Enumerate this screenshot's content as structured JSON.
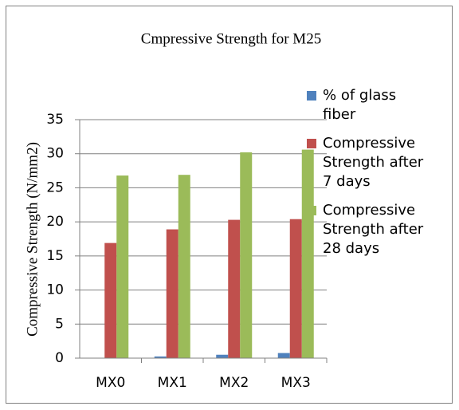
{
  "chart_data": {
    "type": "bar",
    "title": "Cmpressive Strength for M25",
    "y_label": "Compressive Strength (N/mm2)",
    "categories": [
      "MX0",
      "MX1",
      "MX2",
      "MX3"
    ],
    "series": [
      {
        "name": "% of glass fiber",
        "color": "#4f81bd",
        "values": [
          0,
          0.25,
          0.5,
          0.75
        ]
      },
      {
        "name": "Compressive Strength after 7 days",
        "color": "#c0504d",
        "values": [
          16.9,
          18.9,
          20.3,
          20.4
        ]
      },
      {
        "name": "Compressive Strength after 28 days",
        "color": "#9bbb59",
        "values": [
          26.8,
          26.9,
          30.2,
          30.6
        ]
      }
    ],
    "ylim": [
      0,
      35
    ],
    "yticks": [
      0,
      5,
      10,
      15,
      20,
      25,
      30,
      35
    ],
    "grid": true,
    "legend": "right"
  }
}
